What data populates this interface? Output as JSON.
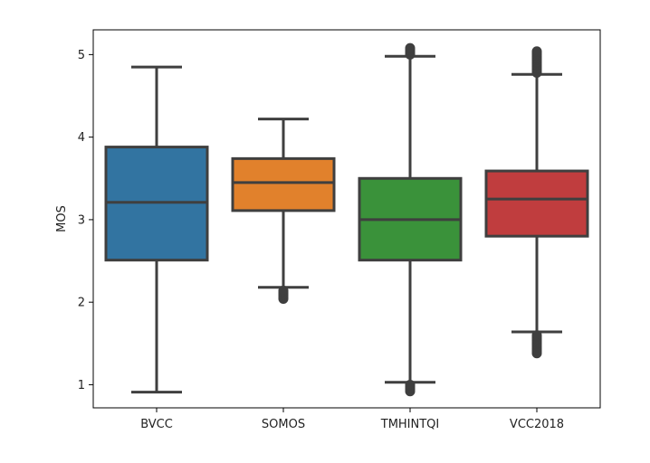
{
  "chart_data": {
    "type": "boxplot",
    "xlabel": "",
    "ylabel": "MOS",
    "ylim": [
      0.72,
      5.3
    ],
    "yticks": [
      1,
      2,
      3,
      4,
      5
    ],
    "categories": [
      "BVCC",
      "SOMOS",
      "TMHINTQI",
      "VCC2018"
    ],
    "grid": false,
    "boxes": [
      {
        "category": "BVCC",
        "color": "#3274a1",
        "whisker_low": 0.91,
        "q1": 2.51,
        "median": 3.21,
        "q3": 3.88,
        "whisker_high": 4.85,
        "outliers": []
      },
      {
        "category": "SOMOS",
        "color": "#e1812c",
        "whisker_low": 2.18,
        "q1": 3.11,
        "median": 3.45,
        "q3": 3.74,
        "whisker_high": 4.22,
        "outliers": [
          2.04,
          2.06,
          2.08,
          2.1,
          2.12,
          2.14
        ]
      },
      {
        "category": "TMHINTQI",
        "color": "#3a923a",
        "whisker_low": 1.03,
        "q1": 2.51,
        "median": 3.0,
        "q3": 3.5,
        "whisker_high": 4.98,
        "outliers": [
          0.92,
          0.94,
          0.96,
          0.98,
          1.0,
          5.0,
          5.02,
          5.04,
          5.06,
          5.08
        ]
      },
      {
        "category": "VCC2018",
        "color": "#c03d3e",
        "whisker_low": 1.64,
        "q1": 2.8,
        "median": 3.25,
        "q3": 3.59,
        "whisker_high": 4.76,
        "outliers": [
          1.38,
          1.4,
          1.42,
          1.44,
          1.46,
          1.48,
          1.5,
          1.52,
          1.54,
          1.56,
          1.58,
          1.6,
          4.78,
          4.8,
          4.82,
          4.84,
          4.86,
          4.88,
          4.9,
          4.92,
          4.94,
          4.96,
          4.98,
          5.0,
          5.02,
          5.04
        ]
      }
    ]
  }
}
